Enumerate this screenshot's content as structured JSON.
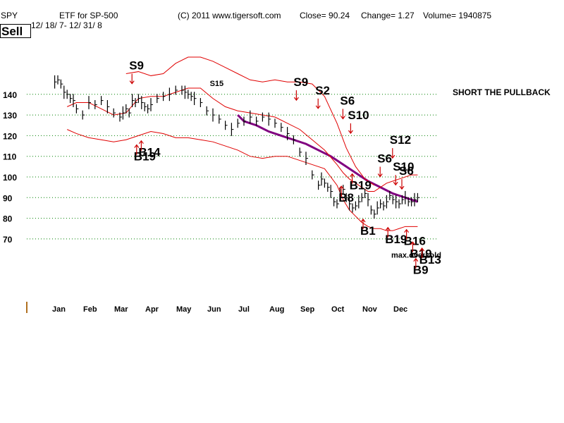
{
  "header": {
    "ticker": "SPY",
    "description": "ETF for SP-500",
    "copyright": "(C) 2011 www.tigersoft.com",
    "close": "Close=  90.24",
    "change": "Change= 1.27",
    "volume": "Volume= 1940875",
    "date_range": "12/ 18/ 7-  12/ 31/ 8",
    "status": "Sell"
  },
  "annotation": "SHORT THE PULLBACK",
  "colors": {
    "price_bars": "#000000",
    "bands": "#e00000",
    "moving_average": "#800080",
    "arrows": "#cc0000",
    "grid": "#008000",
    "axis_tick": "#b07020"
  },
  "chart_data": {
    "type": "line",
    "title": "",
    "xlabel": "",
    "ylabel": "",
    "ylim": [
      65,
      155
    ],
    "yticks": [
      140,
      130,
      120,
      110,
      100,
      90,
      80,
      70
    ],
    "months": [
      "Jan",
      "Feb",
      "Mar",
      "Apr",
      "May",
      "Jun",
      "Jul",
      "Aug",
      "Sep",
      "Oct",
      "Nov",
      "Dec"
    ],
    "grid": "horizontal dotted",
    "series": [
      {
        "role": "price",
        "x": [
          -0.1,
          0.0,
          0.1,
          0.2,
          0.3,
          0.4,
          0.5,
          0.6,
          0.8,
          1.0,
          1.2,
          1.4,
          1.6,
          1.8,
          2.0,
          2.1,
          2.2,
          2.3,
          2.4,
          2.5,
          2.6,
          2.7,
          2.8,
          2.9,
          3.0,
          3.2,
          3.4,
          3.6,
          3.8,
          4.0,
          4.1,
          4.2,
          4.3,
          4.4,
          4.6,
          4.8,
          5.0,
          5.2,
          5.4,
          5.6,
          5.8,
          6.0,
          6.2,
          6.4,
          6.6,
          6.8,
          7.0,
          7.2,
          7.4,
          7.6,
          7.8,
          8.0,
          8.2,
          8.4,
          8.5,
          8.6,
          8.7,
          8.8,
          8.9,
          9.0,
          9.1,
          9.2,
          9.3,
          9.4,
          9.5,
          9.6,
          9.7,
          9.8,
          9.9,
          10.0,
          10.1,
          10.2,
          10.3,
          10.4,
          10.5,
          10.6,
          10.7,
          10.8,
          10.9,
          11.0,
          11.1,
          11.2,
          11.3,
          11.4,
          11.5,
          11.6
        ],
        "values": [
          146,
          147,
          145,
          141,
          140,
          138,
          137,
          133,
          130,
          136,
          135,
          137,
          134,
          131,
          129,
          131,
          133,
          131,
          137,
          136,
          138,
          136,
          134,
          133,
          135,
          138,
          139,
          140,
          142,
          142,
          141,
          140,
          139,
          138,
          136,
          132,
          130,
          128,
          125,
          123,
          126,
          127,
          129,
          127,
          129,
          128,
          126,
          124,
          121,
          118,
          112,
          109,
          101,
          96,
          99,
          97,
          95,
          93,
          88,
          87,
          92,
          94,
          90,
          87,
          85,
          86,
          88,
          90,
          92,
          89,
          84,
          82,
          85,
          87,
          86,
          88,
          91,
          89,
          88,
          87,
          89,
          90,
          88,
          88,
          89,
          90
        ]
      },
      {
        "role": "moving-average",
        "x": [
          5.8,
          6.0,
          6.4,
          6.8,
          7.2,
          7.6,
          8.0,
          8.4,
          8.8,
          9.2,
          9.6,
          10.0,
          10.4,
          10.8,
          11.0,
          11.2,
          11.4,
          11.6
        ],
        "values": [
          130,
          127,
          125,
          122,
          120,
          118,
          116,
          113,
          110,
          106,
          102,
          98,
          95,
          92,
          91,
          90,
          89,
          88
        ]
      },
      {
        "role": "upper-band",
        "x": [
          0.3,
          0.6,
          1.0,
          1.4,
          1.8,
          2.2,
          2.6,
          3.0,
          3.4,
          3.8,
          4.2,
          4.6,
          5.0,
          5.4,
          5.8,
          6.2,
          6.6,
          7.0,
          7.4,
          7.8,
          8.2,
          8.6,
          9.0,
          9.2,
          9.4,
          9.6,
          9.8,
          10.0,
          10.2,
          10.4,
          10.6,
          10.8,
          11.0,
          11.2,
          11.4,
          11.6
        ],
        "values": [
          134,
          136,
          136,
          133,
          130,
          131,
          138,
          139,
          139,
          141,
          143,
          143,
          138,
          134,
          132,
          131,
          130,
          129,
          126,
          123,
          118,
          113,
          106,
          102,
          99,
          97,
          95,
          93,
          93,
          95,
          97,
          98,
          99,
          100,
          101,
          101
        ]
      },
      {
        "role": "lower-band",
        "x": [
          0.3,
          0.6,
          1.0,
          1.4,
          1.8,
          2.2,
          2.6,
          3.0,
          3.4,
          3.8,
          4.2,
          4.6,
          5.0,
          5.4,
          5.8,
          6.2,
          6.6,
          7.0,
          7.4,
          7.8,
          8.2,
          8.6,
          9.0,
          9.2,
          9.4,
          9.6,
          9.8,
          10.0,
          10.2,
          10.4,
          10.6,
          10.8,
          11.0,
          11.2,
          11.4,
          11.6
        ],
        "values": [
          123,
          121,
          119,
          118,
          117,
          118,
          120,
          122,
          121,
          119,
          119,
          118,
          117,
          115,
          113,
          110,
          109,
          110,
          110,
          108,
          106,
          104,
          96,
          89,
          84,
          81,
          78,
          76,
          75,
          75,
          74,
          74,
          75,
          76,
          76,
          76
        ]
      },
      {
        "role": "outer-band",
        "x": [
          2.2,
          2.6,
          3.0,
          3.4,
          3.8,
          4.2,
          4.6,
          5.0,
          5.4,
          5.8,
          6.2,
          6.6,
          7.0,
          7.4,
          7.8,
          8.2,
          8.6,
          9.0,
          9.3,
          9.6,
          9.9,
          10.2
        ],
        "values": [
          150,
          151,
          149,
          150,
          155,
          158,
          158,
          156,
          153,
          150,
          147,
          146,
          147,
          146,
          146,
          145,
          139,
          126,
          114,
          105,
          99,
          96
        ]
      }
    ]
  },
  "signals": [
    {
      "text": "S9",
      "x": 2.3,
      "y": 152
    },
    {
      "text": "S15",
      "x": 4.9,
      "y": 144
    },
    {
      "text": "S9",
      "x": 7.6,
      "y": 144
    },
    {
      "text": "S2",
      "x": 8.3,
      "y": 140
    },
    {
      "text": "S6",
      "x": 9.1,
      "y": 135
    },
    {
      "text": "S10",
      "x": 9.35,
      "y": 128
    },
    {
      "text": "S12",
      "x": 10.7,
      "y": 116
    },
    {
      "text": "S6",
      "x": 10.3,
      "y": 107
    },
    {
      "text": "S10",
      "x": 10.8,
      "y": 103
    },
    {
      "text": "S6",
      "x": 11.0,
      "y": 101
    },
    {
      "text": "B14",
      "x": 2.6,
      "y": 110
    },
    {
      "text": "B19",
      "x": 2.45,
      "y": 108
    },
    {
      "text": "B19",
      "x": 9.4,
      "y": 94
    },
    {
      "text": "B8",
      "x": 9.05,
      "y": 88
    },
    {
      "text": "B1",
      "x": 9.75,
      "y": 72
    },
    {
      "text": "B19",
      "x": 10.55,
      "y": 68
    },
    {
      "text": "B16",
      "x": 11.15,
      "y": 67
    },
    {
      "text": "max.oversold",
      "x": 10.75,
      "y": 61
    },
    {
      "text": "B19",
      "x": 11.35,
      "y": 61
    },
    {
      "text": "B13",
      "x": 11.65,
      "y": 58
    },
    {
      "text": "B9",
      "x": 11.45,
      "y": 53
    }
  ]
}
